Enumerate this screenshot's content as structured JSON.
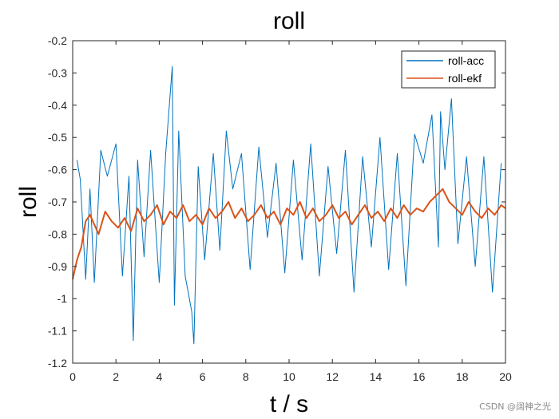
{
  "chart_data": {
    "type": "line",
    "title": "roll",
    "xlabel": "t / s",
    "ylabel": "roll",
    "xlim": [
      0,
      20
    ],
    "ylim": [
      -1.2,
      -0.2
    ],
    "xticks": [
      0,
      2,
      4,
      6,
      8,
      10,
      12,
      14,
      16,
      18,
      20
    ],
    "xtick_labels": [
      "0",
      "2",
      "4",
      "6",
      "8",
      "10",
      "12",
      "14",
      "16",
      "18",
      "20"
    ],
    "yticks": [
      -1.2,
      -1.1,
      -1.0,
      -0.9,
      -0.8,
      -0.7,
      -0.6,
      -0.5,
      -0.4,
      -0.3,
      -0.2
    ],
    "ytick_labels": [
      "-1.2",
      "-1.1",
      "-1",
      "-0.9",
      "-0.8",
      "-0.7",
      "-0.6",
      "-0.5",
      "-0.4",
      "-0.3",
      "-0.2"
    ],
    "grid": false,
    "legend_position": "top-right",
    "series": [
      {
        "name": "roll-acc",
        "color": "#0072BD",
        "x": [
          0.2,
          0.35,
          0.6,
          0.8,
          1.0,
          1.3,
          1.6,
          2.0,
          2.3,
          2.6,
          2.8,
          3.0,
          3.3,
          3.6,
          4.0,
          4.3,
          4.6,
          4.7,
          4.9,
          5.2,
          5.5,
          5.6,
          5.8,
          6.1,
          6.5,
          6.8,
          7.1,
          7.4,
          7.8,
          8.2,
          8.6,
          9.0,
          9.4,
          9.8,
          10.2,
          10.6,
          11.0,
          11.4,
          11.8,
          12.2,
          12.6,
          13.0,
          13.4,
          13.8,
          14.2,
          14.6,
          15.0,
          15.4,
          15.8,
          16.2,
          16.6,
          16.9,
          17.0,
          17.2,
          17.5,
          17.8,
          18.2,
          18.6,
          19.0,
          19.4,
          19.8
        ],
        "y": [
          -0.57,
          -0.63,
          -0.94,
          -0.66,
          -0.95,
          -0.54,
          -0.62,
          -0.52,
          -0.93,
          -0.62,
          -1.13,
          -0.57,
          -0.87,
          -0.54,
          -0.95,
          -0.55,
          -0.28,
          -1.02,
          -0.48,
          -0.93,
          -1.04,
          -1.14,
          -0.59,
          -0.88,
          -0.55,
          -0.85,
          -0.48,
          -0.66,
          -0.55,
          -0.91,
          -0.53,
          -0.81,
          -0.58,
          -0.92,
          -0.57,
          -0.88,
          -0.52,
          -0.93,
          -0.59,
          -0.86,
          -0.54,
          -0.98,
          -0.56,
          -0.84,
          -0.5,
          -0.91,
          -0.55,
          -0.96,
          -0.49,
          -0.58,
          -0.43,
          -0.84,
          -0.42,
          -0.6,
          -0.38,
          -0.83,
          -0.56,
          -0.9,
          -0.56,
          -0.98,
          -0.58
        ]
      },
      {
        "name": "roll-ekf",
        "color": "#D95319",
        "x": [
          0,
          0.2,
          0.4,
          0.6,
          0.8,
          1.0,
          1.2,
          1.5,
          1.8,
          2.1,
          2.4,
          2.7,
          3.0,
          3.3,
          3.6,
          3.9,
          4.2,
          4.5,
          4.8,
          5.1,
          5.4,
          5.7,
          6.0,
          6.3,
          6.6,
          6.9,
          7.2,
          7.5,
          7.8,
          8.1,
          8.4,
          8.7,
          9.0,
          9.3,
          9.6,
          9.9,
          10.2,
          10.5,
          10.8,
          11.1,
          11.4,
          11.7,
          12.0,
          12.3,
          12.6,
          12.9,
          13.2,
          13.5,
          13.8,
          14.1,
          14.4,
          14.7,
          15.0,
          15.3,
          15.6,
          15.9,
          16.2,
          16.5,
          16.8,
          17.1,
          17.4,
          17.7,
          18.0,
          18.3,
          18.6,
          18.9,
          19.2,
          19.5,
          19.8,
          20.0
        ],
        "y": [
          -0.94,
          -0.88,
          -0.84,
          -0.76,
          -0.74,
          -0.77,
          -0.8,
          -0.73,
          -0.76,
          -0.78,
          -0.75,
          -0.79,
          -0.72,
          -0.76,
          -0.74,
          -0.71,
          -0.77,
          -0.73,
          -0.75,
          -0.71,
          -0.76,
          -0.74,
          -0.77,
          -0.72,
          -0.75,
          -0.73,
          -0.7,
          -0.75,
          -0.72,
          -0.76,
          -0.74,
          -0.71,
          -0.75,
          -0.73,
          -0.77,
          -0.72,
          -0.74,
          -0.7,
          -0.75,
          -0.72,
          -0.76,
          -0.74,
          -0.71,
          -0.75,
          -0.73,
          -0.77,
          -0.74,
          -0.71,
          -0.75,
          -0.73,
          -0.76,
          -0.72,
          -0.75,
          -0.71,
          -0.74,
          -0.72,
          -0.73,
          -0.7,
          -0.68,
          -0.66,
          -0.7,
          -0.72,
          -0.74,
          -0.7,
          -0.73,
          -0.75,
          -0.72,
          -0.74,
          -0.71,
          -0.72
        ]
      }
    ]
  },
  "watermark": "CSDN @阔神之光"
}
